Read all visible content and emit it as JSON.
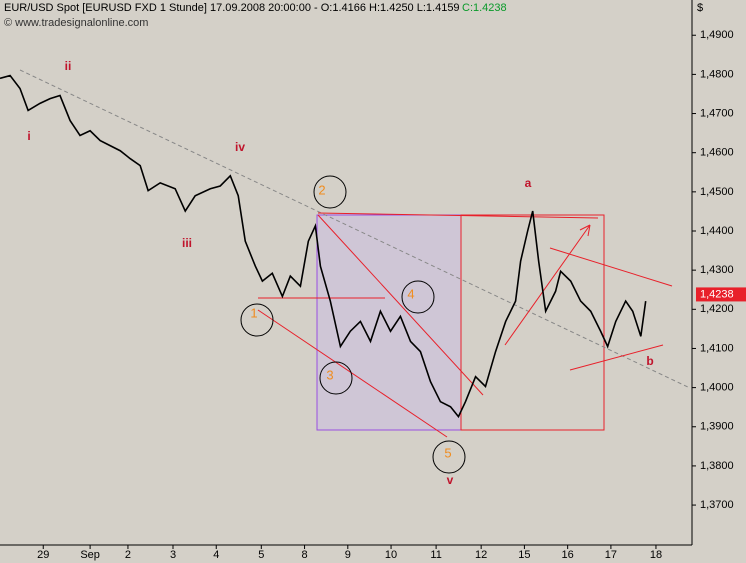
{
  "chart_data": {
    "type": "line",
    "title": "EUR/USD Spot [EURUSD FXD  1 Stunde] 17.09.2008 20:00:00 - O:1.4166 H:1.4250 L:1.4159",
    "close_text": "C:1.4238",
    "watermark": "© www.tradesignalonline.com",
    "currency": "$",
    "current_price": 1.4238,
    "current_price_label": "1,4238",
    "x": [
      0,
      5.6,
      11.1,
      15.6,
      22.2,
      27.8,
      33.3,
      38.9,
      44.4,
      50,
      55.6,
      61.1,
      66.7,
      72.2,
      77.8,
      82.2,
      88.9,
      97.2,
      102.8,
      108.3,
      116.7,
      122.2,
      127.8,
      132.2,
      136.1,
      141.7,
      145.6,
      151.1,
      156.7,
      161.1,
      166.7,
      171.1,
      175,
      177.8,
      183.3,
      188.9,
      194.4,
      200,
      205.6,
      211.1,
      216.7,
      222.2,
      227.8,
      233.3,
      238.9,
      244.4,
      250,
      254.4,
      258.3,
      263.9,
      269.4,
      275,
      280.6,
      286.1,
      288.9,
      292.8,
      295.6,
      298.9,
      302.8,
      308.3,
      311.1,
      316.7,
      322.2,
      327.8,
      333.3,
      337.2,
      341.7,
      347.2,
      351.1,
      355.6,
      358.3
    ],
    "series": [
      {
        "name": "EUR/USD",
        "color": "#000000",
        "values": [
          1.479,
          1.4797,
          1.4764,
          1.4708,
          1.4726,
          1.4738,
          1.4746,
          1.4682,
          1.4644,
          1.4656,
          1.4631,
          1.4618,
          1.4605,
          1.4585,
          1.4567,
          1.4503,
          1.4523,
          1.4508,
          1.4451,
          1.449,
          1.4508,
          1.4515,
          1.4541,
          1.449,
          1.4374,
          1.431,
          1.4272,
          1.4292,
          1.4233,
          1.4285,
          1.4259,
          1.4374,
          1.4413,
          1.431,
          1.4221,
          1.4105,
          1.4144,
          1.4169,
          1.4118,
          1.4195,
          1.4144,
          1.4182,
          1.4118,
          1.4092,
          1.4015,
          1.3964,
          1.3951,
          1.3926,
          1.3964,
          1.4028,
          1.4003,
          1.4092,
          1.4169,
          1.4221,
          1.4323,
          1.44,
          1.4451,
          1.4323,
          1.4195,
          1.4246,
          1.4297,
          1.4272,
          1.4221,
          1.4195,
          1.4144,
          1.4105,
          1.4169,
          1.4221,
          1.4195,
          1.4131,
          1.4221
        ]
      }
    ],
    "xlim": [
      0,
      384
    ],
    "xticks": [
      {
        "value": 24,
        "label": "29"
      },
      {
        "value": 50,
        "label": "Sep"
      },
      {
        "value": 71,
        "label": "2"
      },
      {
        "value": 96,
        "label": "3"
      },
      {
        "value": 120,
        "label": "4"
      },
      {
        "value": 145,
        "label": "5"
      },
      {
        "value": 169,
        "label": "8"
      },
      {
        "value": 193,
        "label": "9"
      },
      {
        "value": 217,
        "label": "10"
      },
      {
        "value": 242,
        "label": "11"
      },
      {
        "value": 267,
        "label": "12"
      },
      {
        "value": 291,
        "label": "15"
      },
      {
        "value": 315,
        "label": "16"
      },
      {
        "value": 339,
        "label": "17"
      },
      {
        "value": 364,
        "label": "18"
      }
    ],
    "ylim": [
      1.3598,
      1.499
    ],
    "yticks": [
      {
        "value": 1.37,
        "label": "1,3700"
      },
      {
        "value": 1.38,
        "label": "1,3800"
      },
      {
        "value": 1.39,
        "label": "1,3900"
      },
      {
        "value": 1.4,
        "label": "1,4000"
      },
      {
        "value": 1.41,
        "label": "1,4100"
      },
      {
        "value": 1.42,
        "label": "1,4200"
      },
      {
        "value": 1.43,
        "label": "1,4300"
      },
      {
        "value": 1.44,
        "label": "1,4400"
      },
      {
        "value": 1.45,
        "label": "1,4500"
      },
      {
        "value": 1.46,
        "label": "1,4600"
      },
      {
        "value": 1.47,
        "label": "1,4700"
      },
      {
        "value": 1.48,
        "label": "1,4800"
      },
      {
        "value": 1.49,
        "label": "1,4900"
      }
    ],
    "wave_labels": [
      "i",
      "ii",
      "iii",
      "iv",
      "v",
      "a",
      "b"
    ],
    "count_labels": [
      "1",
      "2",
      "3",
      "4",
      "5"
    ]
  }
}
